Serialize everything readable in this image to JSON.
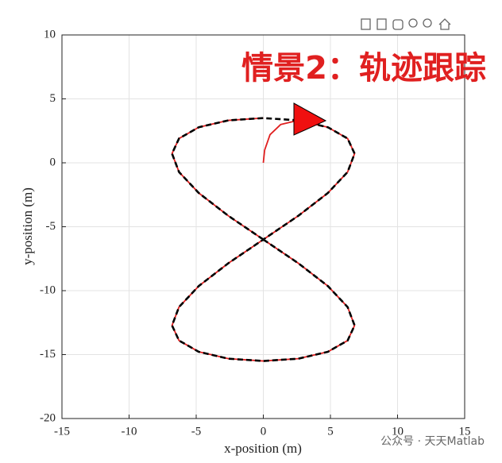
{
  "chart_data": {
    "type": "line",
    "annotation": "情景2：轨迹跟踪",
    "xlabel": "x-position (m)",
    "ylabel": "y-position (m)",
    "watermark": "公众号 · 天天Matlab",
    "xlim": [
      -15,
      15
    ],
    "xticks": [
      -15,
      -10,
      -5,
      0,
      5,
      10,
      15
    ],
    "ylim": [
      -20,
      10
    ],
    "yticks": [
      -20,
      -15,
      -10,
      -5,
      0,
      5,
      10
    ],
    "grid": true,
    "series": [
      {
        "color": "#e02020",
        "dash": false,
        "x": [
          0,
          0.1,
          0.5,
          1.3,
          2.6,
          4.81,
          6.28,
          6.8,
          6.28,
          4.81,
          2.6,
          0,
          -2.6,
          -4.81,
          -6.28,
          -6.8,
          -6.28,
          -4.81,
          -2.6,
          0,
          2.6,
          4.81,
          6.28,
          6.8,
          6.28,
          4.81,
          2.6,
          0,
          -2.6,
          -4.81,
          -6.28,
          -6.8,
          -6.28,
          -4.81,
          -2.6,
          0
        ],
        "values": [
          0,
          1,
          2.2,
          3,
          3.32,
          2.78,
          1.9,
          0.72,
          -0.72,
          -2.36,
          -4.15,
          -6,
          -7.85,
          -9.64,
          -11.28,
          -12.72,
          -13.9,
          -14.78,
          -15.32,
          -15.5,
          -15.32,
          -14.78,
          -13.9,
          -12.72,
          -11.28,
          -9.64,
          -7.85,
          -6,
          -4.15,
          -2.36,
          -0.72,
          0.72,
          1.9,
          2.78,
          3.32,
          3.5
        ]
      },
      {
        "color": "#000000",
        "dash": true,
        "x": [
          0,
          -2.6,
          -4.81,
          -6.28,
          -6.8,
          -6.28,
          -4.81,
          -2.6,
          0,
          2.6,
          4.81,
          6.28,
          6.8,
          6.28,
          4.81,
          2.6,
          0,
          -2.6,
          -4.81,
          -6.28,
          -6.8,
          -6.28,
          -4.81,
          -2.6,
          0,
          2.6,
          4.81,
          6.28,
          6.8,
          6.28,
          4.81,
          2.6,
          0
        ],
        "values": [
          -6,
          -4.15,
          -2.36,
          -0.72,
          0.72,
          1.9,
          2.78,
          3.32,
          3.5,
          3.32,
          2.78,
          1.9,
          0.72,
          -0.72,
          -2.36,
          -4.15,
          -6,
          -7.85,
          -9.64,
          -11.28,
          -12.72,
          -13.9,
          -14.78,
          -15.32,
          -15.5,
          -15.32,
          -14.78,
          -13.9,
          -12.72,
          -11.28,
          -9.64,
          -7.85,
          -6
        ]
      }
    ]
  }
}
